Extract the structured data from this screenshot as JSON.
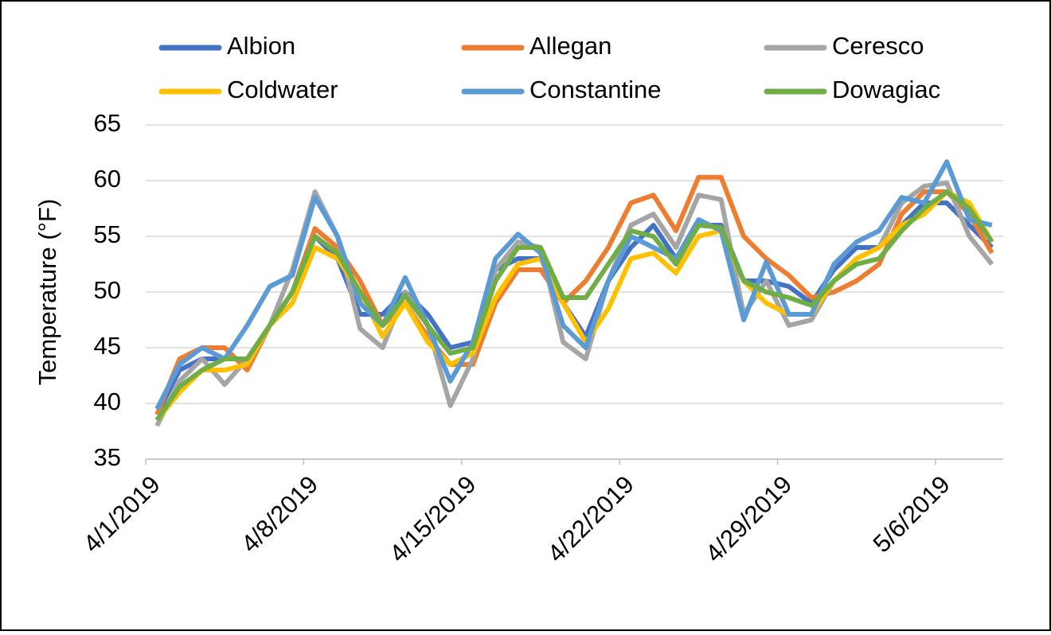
{
  "chart_data": {
    "type": "line",
    "y_label": "Temperature (°F)",
    "categories": [
      "4/1/2019",
      null,
      null,
      null,
      null,
      null,
      null,
      "4/8/2019",
      null,
      null,
      null,
      null,
      null,
      null,
      "4/15/2019",
      null,
      null,
      null,
      null,
      null,
      null,
      "4/22/2019",
      null,
      null,
      null,
      null,
      null,
      null,
      "4/29/2019",
      null,
      null,
      null,
      null,
      null,
      null,
      "5/6/2019",
      null,
      null
    ],
    "ylim": [
      35,
      65
    ],
    "yticks": [
      35,
      40,
      45,
      50,
      55,
      60,
      65
    ],
    "grid": true,
    "series": [
      {
        "name": "Albion",
        "color": "#4472c4",
        "values": [
          39,
          43,
          44,
          44,
          44,
          47,
          50,
          55,
          53,
          48,
          48,
          50,
          48,
          45,
          45.5,
          52,
          53,
          53,
          49,
          46,
          51,
          54,
          56,
          53,
          56,
          56,
          51,
          51,
          50.5,
          49,
          52,
          54,
          54,
          56,
          58,
          58,
          56,
          54
        ]
      },
      {
        "name": "Allegan",
        "color": "#ed7d31",
        "values": [
          39,
          44,
          45,
          45,
          43,
          47,
          50,
          55.7,
          54,
          51,
          47,
          49,
          46,
          43.5,
          43.5,
          49,
          52,
          52,
          49,
          51,
          54,
          58,
          58.7,
          55.5,
          60.3,
          60.3,
          55,
          53,
          51.5,
          49.5,
          50,
          51,
          52.5,
          57,
          59,
          59,
          57,
          53.5
        ]
      },
      {
        "name": "Ceresco",
        "color": "#a5a5a5",
        "values": [
          38,
          42,
          44,
          41.7,
          44,
          47,
          52,
          59,
          55,
          46.7,
          45,
          50,
          47,
          39.8,
          44,
          52,
          54.5,
          54,
          45.5,
          44,
          51,
          56,
          57,
          54,
          58.7,
          58.3,
          48,
          51,
          47,
          47.5,
          51,
          53,
          54,
          58,
          59.5,
          59.8,
          55,
          52.5
        ]
      },
      {
        "name": "Coldwater",
        "color": "#ffc000",
        "values": [
          38.5,
          41,
          43,
          43,
          43.5,
          47,
          49,
          54,
          53,
          50,
          46,
          49,
          45.5,
          43.5,
          44.5,
          49.5,
          52.5,
          53,
          49,
          45.5,
          48.5,
          53,
          53.5,
          51.7,
          55,
          55.5,
          51,
          49,
          48,
          48,
          51,
          53,
          54,
          56,
          57,
          59,
          58,
          54.5
        ]
      },
      {
        "name": "Constantine",
        "color": "#5b9bd5",
        "values": [
          39.5,
          43.5,
          45,
          44,
          47,
          50.5,
          51.5,
          58.5,
          55,
          49,
          47,
          51.3,
          47,
          42,
          45.5,
          53,
          55.2,
          53.5,
          47,
          45,
          51,
          55,
          54,
          53,
          56.5,
          55.5,
          47.5,
          52.7,
          48,
          48,
          52.5,
          54.5,
          55.5,
          58.5,
          58,
          61.7,
          56.5,
          56
        ]
      },
      {
        "name": "Dowagiac",
        "color": "#70ad47",
        "values": [
          38.5,
          41.5,
          43,
          44,
          44,
          47,
          50,
          55,
          53.5,
          50,
          47,
          49.7,
          47,
          44.5,
          45,
          51,
          54,
          54,
          49.5,
          49.5,
          52.5,
          55.5,
          55,
          52.5,
          56,
          55.8,
          51,
          50,
          49.5,
          48.8,
          51,
          52.5,
          53,
          55.5,
          57.5,
          59,
          57.5,
          54.5
        ]
      }
    ]
  }
}
